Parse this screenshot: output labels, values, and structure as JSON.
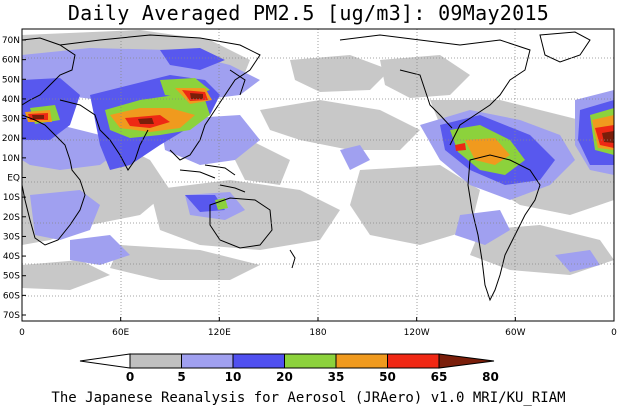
{
  "title": "Daily Averaged PM2.5 [ug/m3]: 09May2015",
  "footer": "The Japanese Reanalysis for Aerosol (JRAero) v1.0 MRI/KU_RIAM",
  "lat_labels": [
    "70N",
    "60N",
    "50N",
    "40N",
    "30N",
    "20N",
    "10N",
    "EQ",
    "10S",
    "20S",
    "30S",
    "40S",
    "50S",
    "60S",
    "70S"
  ],
  "lat_values": [
    70,
    60,
    50,
    40,
    30,
    20,
    10,
    0,
    -10,
    -20,
    -30,
    -40,
    -50,
    -60,
    -70
  ],
  "lon_labels": [
    "0",
    "60E",
    "120E",
    "180",
    "120W",
    "60W",
    "0"
  ],
  "lon_values": [
    0,
    60,
    120,
    180,
    240,
    300,
    360
  ],
  "colorbar": {
    "levels": [
      "0",
      "5",
      "10",
      "20",
      "35",
      "50",
      "65",
      "80"
    ],
    "colors": [
      "#ffffff",
      "#c0c0c0",
      "#a0a0f0",
      "#5050f0",
      "#8cd23c",
      "#f09a1e",
      "#f02814",
      "#7a1e0a"
    ]
  }
}
